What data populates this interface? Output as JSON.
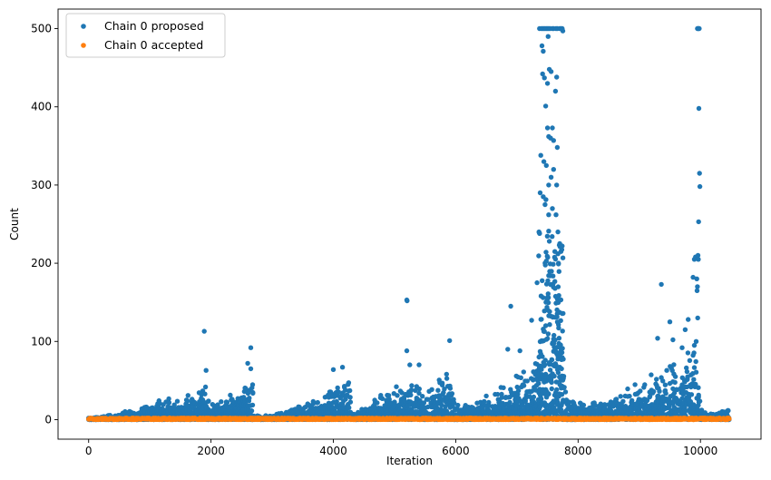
{
  "chart_data": {
    "type": "scatter",
    "title": "",
    "xlabel": "Iteration",
    "ylabel": "Count",
    "xlim": [
      -500,
      10990
    ],
    "ylim": [
      -25,
      525
    ],
    "xticks": [
      0,
      2000,
      4000,
      6000,
      8000,
      10000
    ],
    "yticks": [
      0,
      100,
      200,
      300,
      400,
      500
    ],
    "grid": false,
    "legend_position": "upper-left",
    "series": [
      {
        "name": "Chain 0 proposed",
        "color": "#1f77b4",
        "marker": "circle",
        "envelope": [
          [
            0,
            2
          ],
          [
            200,
            4
          ],
          [
            400,
            6
          ],
          [
            600,
            9
          ],
          [
            800,
            12
          ],
          [
            1000,
            18
          ],
          [
            1200,
            24
          ],
          [
            1400,
            22
          ],
          [
            1600,
            28
          ],
          [
            1800,
            35
          ],
          [
            1900,
            40
          ],
          [
            2000,
            18
          ],
          [
            2200,
            25
          ],
          [
            2400,
            30
          ],
          [
            2600,
            40
          ],
          [
            2680,
            45
          ],
          [
            2700,
            5
          ],
          [
            3000,
            6
          ],
          [
            3200,
            10
          ],
          [
            3400,
            14
          ],
          [
            3600,
            20
          ],
          [
            3800,
            28
          ],
          [
            4000,
            40
          ],
          [
            4200,
            45
          ],
          [
            4280,
            50
          ],
          [
            4300,
            8
          ],
          [
            4500,
            15
          ],
          [
            4700,
            25
          ],
          [
            4900,
            35
          ],
          [
            5100,
            40
          ],
          [
            5300,
            45
          ],
          [
            5500,
            35
          ],
          [
            5700,
            45
          ],
          [
            5900,
            55
          ],
          [
            6000,
            20
          ],
          [
            6200,
            18
          ],
          [
            6400,
            22
          ],
          [
            6600,
            30
          ],
          [
            6800,
            45
          ],
          [
            7000,
            50
          ],
          [
            7200,
            60
          ],
          [
            7350,
            120
          ],
          [
            7450,
            230
          ],
          [
            7550,
            260
          ],
          [
            7650,
            230
          ],
          [
            7750,
            110
          ],
          [
            7800,
            25
          ],
          [
            8000,
            20
          ],
          [
            8200,
            18
          ],
          [
            8400,
            20
          ],
          [
            8600,
            25
          ],
          [
            8800,
            35
          ],
          [
            9000,
            45
          ],
          [
            9200,
            55
          ],
          [
            9400,
            60
          ],
          [
            9600,
            70
          ],
          [
            9800,
            80
          ],
          [
            9950,
            90
          ],
          [
            10000,
            12
          ],
          [
            10200,
            8
          ],
          [
            10400,
            10
          ],
          [
            10470,
            15
          ]
        ],
        "outliers": [
          [
            1890,
            113
          ],
          [
            2650,
            92
          ],
          [
            2600,
            72
          ],
          [
            2650,
            65
          ],
          [
            1920,
            63
          ],
          [
            5200,
            153
          ],
          [
            5205,
            152
          ],
          [
            5900,
            101
          ],
          [
            5200,
            88
          ],
          [
            4150,
            67
          ],
          [
            4000,
            64
          ],
          [
            5250,
            70
          ],
          [
            5400,
            70
          ],
          [
            6900,
            145
          ],
          [
            6850,
            90
          ],
          [
            7050,
            88
          ],
          [
            7240,
            127
          ],
          [
            7330,
            175
          ],
          [
            7360,
            240
          ],
          [
            7380,
            290
          ],
          [
            7390,
            338
          ],
          [
            7370,
            500
          ],
          [
            7400,
            500
          ],
          [
            7420,
            500
          ],
          [
            7440,
            500
          ],
          [
            7460,
            500
          ],
          [
            7480,
            500
          ],
          [
            7500,
            500
          ],
          [
            7520,
            500
          ],
          [
            7540,
            500
          ],
          [
            7580,
            500
          ],
          [
            7600,
            500
          ],
          [
            7640,
            500
          ],
          [
            7660,
            500
          ],
          [
            7700,
            500
          ],
          [
            7720,
            500
          ],
          [
            7740,
            500
          ],
          [
            7750,
            497
          ],
          [
            7410,
            478
          ],
          [
            7430,
            471
          ],
          [
            7510,
            490
          ],
          [
            7420,
            442
          ],
          [
            7450,
            437
          ],
          [
            7500,
            430
          ],
          [
            7530,
            448
          ],
          [
            7560,
            445
          ],
          [
            7650,
            438
          ],
          [
            7630,
            420
          ],
          [
            7470,
            401
          ],
          [
            7500,
            373
          ],
          [
            7580,
            373
          ],
          [
            7520,
            362
          ],
          [
            7550,
            360
          ],
          [
            7600,
            357
          ],
          [
            7660,
            348
          ],
          [
            7440,
            330
          ],
          [
            7480,
            325
          ],
          [
            7600,
            320
          ],
          [
            7520,
            300
          ],
          [
            7560,
            310
          ],
          [
            7650,
            300
          ],
          [
            7430,
            285
          ],
          [
            7460,
            275
          ],
          [
            7520,
            262
          ],
          [
            7580,
            270
          ],
          [
            7640,
            262
          ],
          [
            7670,
            240
          ],
          [
            7700,
            225
          ],
          [
            7720,
            215
          ],
          [
            7680,
            200
          ],
          [
            7740,
            222
          ],
          [
            7620,
            215
          ],
          [
            9360,
            173
          ],
          [
            9550,
            102
          ],
          [
            9300,
            104
          ],
          [
            9500,
            125
          ],
          [
            9750,
            115
          ],
          [
            9800,
            128
          ],
          [
            9880,
            182
          ],
          [
            9900,
            205
          ],
          [
            9920,
            208
          ],
          [
            9940,
            180
          ],
          [
            9950,
            500
          ],
          [
            9960,
            500
          ],
          [
            9970,
            500
          ],
          [
            9980,
            500
          ],
          [
            9975,
            398
          ],
          [
            9985,
            315
          ],
          [
            9990,
            298
          ],
          [
            9970,
            253
          ],
          [
            9960,
            210
          ],
          [
            9965,
            205
          ],
          [
            9950,
            170
          ],
          [
            9945,
            165
          ],
          [
            9955,
            130
          ],
          [
            9930,
            100
          ],
          [
            9900,
            95
          ],
          [
            9700,
            92
          ]
        ]
      },
      {
        "name": "Chain 0 accepted",
        "color": "#ff7f0e",
        "marker": "circle",
        "values_range": [
          0,
          2
        ]
      }
    ]
  }
}
